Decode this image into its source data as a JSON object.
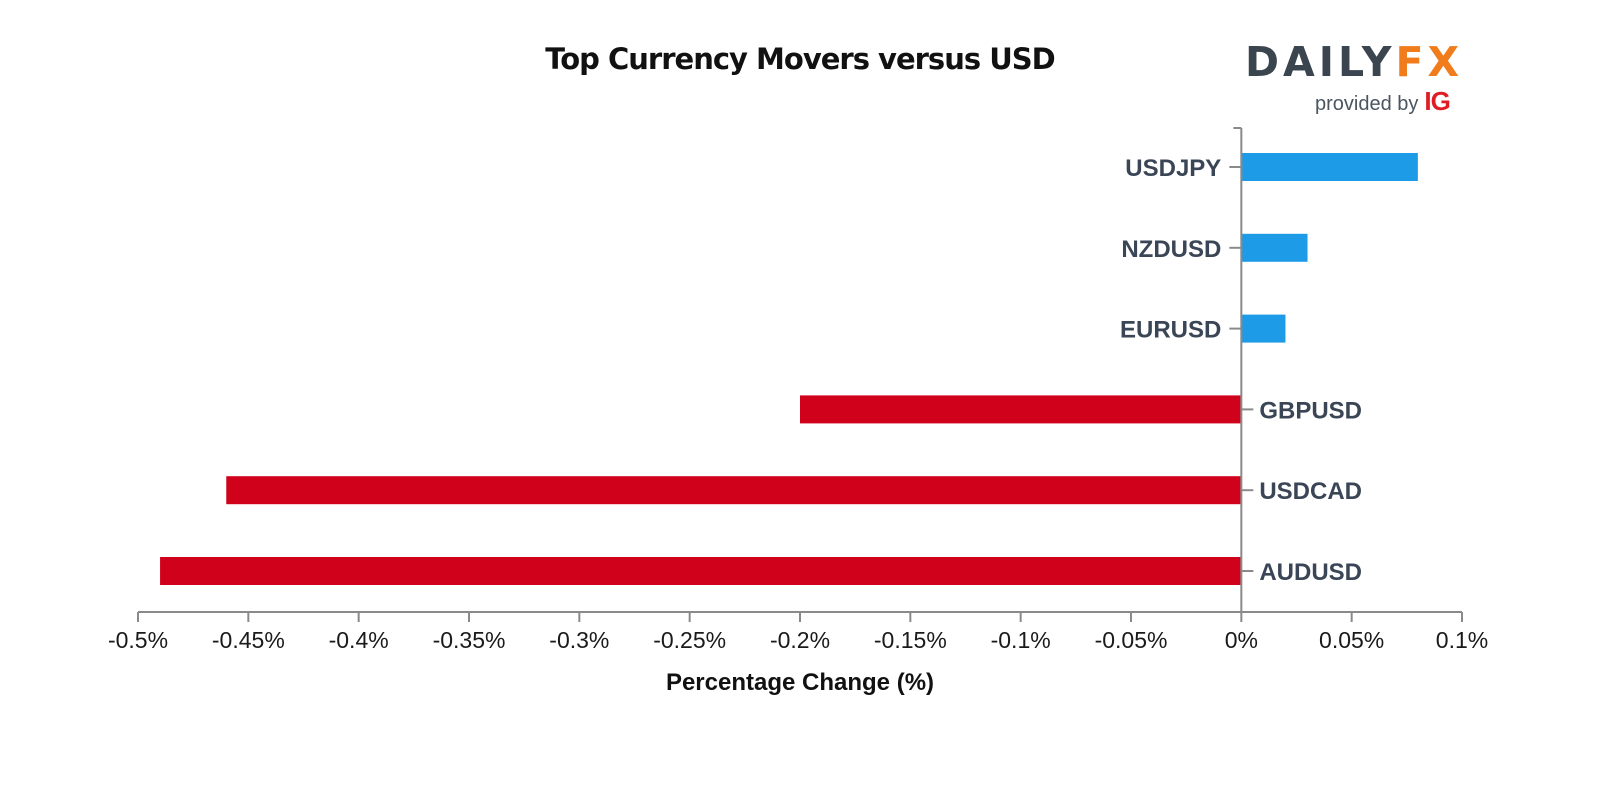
{
  "logo": {
    "wordmark_main": "DAILY",
    "wordmark_accent": "FX",
    "provided_by": "provided by",
    "ig": "IG"
  },
  "chart_data": {
    "type": "bar",
    "orientation": "horizontal",
    "title": "Top Currency Movers versus USD",
    "xlabel": "Percentage Change (%)",
    "ylabel": "",
    "categories": [
      "USDJPY",
      "NZDUSD",
      "EURUSD",
      "GBPUSD",
      "USDCAD",
      "AUDUSD"
    ],
    "values": [
      0.08,
      0.03,
      0.02,
      -0.2,
      -0.46,
      -0.49
    ],
    "xlim": [
      -0.5,
      0.1
    ],
    "x_ticks": [
      -0.5,
      -0.45,
      -0.4,
      -0.35,
      -0.3,
      -0.25,
      -0.2,
      -0.15,
      -0.1,
      -0.05,
      0,
      0.05,
      0.1
    ],
    "x_tick_labels": [
      "-0.5%",
      "-0.45%",
      "-0.4%",
      "-0.35%",
      "-0.3%",
      "-0.25%",
      "-0.2%",
      "-0.15%",
      "-0.1%",
      "-0.05%",
      "0%",
      "0.05%",
      "0.1%"
    ],
    "colors": {
      "positive": "#1e9be6",
      "negative": "#d0021b",
      "axis": "#8a8a8a"
    },
    "grid": false,
    "legend": "none"
  }
}
